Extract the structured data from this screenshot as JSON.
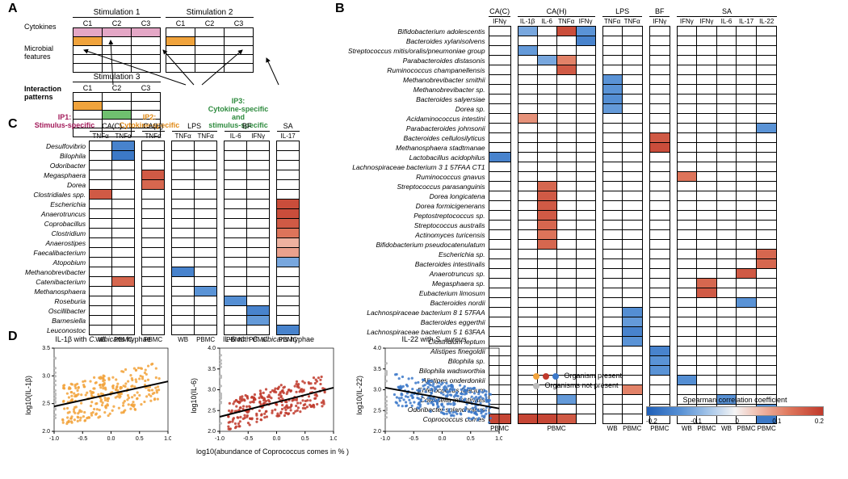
{
  "colormap": {
    "stops": [
      {
        "v": -0.25,
        "c": "#1f5fb8"
      },
      {
        "v": -0.15,
        "c": "#5a93d6"
      },
      {
        "v": -0.07,
        "c": "#a9c8ea"
      },
      {
        "v": 0.0,
        "c": "#f5f5f5"
      },
      {
        "v": 0.07,
        "c": "#f0b9a8"
      },
      {
        "v": 0.15,
        "c": "#e07a5f"
      },
      {
        "v": 0.25,
        "c": "#c0392b"
      }
    ],
    "title": "Spearman correlation coefficient",
    "ticks": [
      "-0.2",
      "-0.1",
      "0",
      "0.1",
      "0.2"
    ]
  },
  "panel_labels": {
    "A": "A",
    "B": "B",
    "C": "C",
    "D": "D"
  },
  "panelA": {
    "cytokines_label": "Cytokines",
    "microbial_label": "Microbial\nfeatures",
    "interaction_label": "Interaction\npatterns",
    "stimulations": [
      {
        "title": "Stimulation 1",
        "cols": [
          "C1",
          "C2",
          "C3"
        ]
      },
      {
        "title": "Stimulation 2",
        "cols": [
          "C1",
          "C2",
          "C3"
        ]
      },
      {
        "title": "Stimulation 3",
        "cols": [
          "C1",
          "C2",
          "C3"
        ]
      }
    ],
    "highlights": {
      "stim1_row0": "#e4a7c6",
      "stim1_row1_c0": "#f0a33c",
      "stim2_row1_c0": "#f0a33c",
      "stim3_row1_c0": "#f0a33c",
      "stim3_row2_c1": "#6fc06f"
    },
    "ip1": "IP1:\nStimulus-specific",
    "ip2": "IP2:\nCytokine-specific",
    "ip3": "IP3:\nCytokine-specific\nand\nstimulus-specific"
  },
  "panelB": {
    "groups": [
      {
        "label": "CA(C)",
        "cols": [
          "IFNγ"
        ],
        "bottom": [
          "PBMC"
        ]
      },
      {
        "label": "CA(H)",
        "cols": [
          "IL-1β",
          "IL-6",
          "TNFα",
          "IFNγ"
        ],
        "bottom": [
          "PBMC"
        ]
      },
      {
        "label": "LPS",
        "cols": [
          "TNFα",
          "TNFα"
        ],
        "bottom": [
          "WB",
          "PBMC"
        ]
      },
      {
        "label": "BF",
        "cols": [
          "IFNγ"
        ],
        "bottom": [
          "PBMC"
        ]
      },
      {
        "label": "SA",
        "cols": [
          "IFNγ",
          "IFNγ",
          "IL-6",
          "IL-17",
          "IL-22"
        ],
        "bottom": [
          "WB",
          "PBMC",
          "WB",
          "PBMC"
        ]
      }
    ],
    "rows": [
      "Bifidobacterium adolescentis",
      "Bacteroides xylanisolvens",
      "Streptococcus mitis/oralis/pneumoniae group",
      "Parabacteroides distasonis",
      "Ruminococcus champanellensis",
      "Methanobrevibacter smithii",
      "Methanobrevibacter sp.",
      "Bacteroides salyersiae",
      "Dorea sp.",
      "Acidaminococcus intestini",
      "Parabacteroides johnsonii",
      "Bacteroides cellulosilyticus",
      "Methanosphaera stadtmanae",
      "Lactobacillus acidophilus",
      "Lachnospiraceae bacterium 3 1 57FAA CT1",
      "Ruminococcus gnavus",
      "Streptococcus parasanguinis",
      "Dorea longicatena",
      "Dorea formicigenerans",
      "Peptostreptococcus sp.",
      "Streptococcus australis",
      "Actinomyces turicensis",
      "Bifidobacterium pseudocatenulatum",
      "Escherichia sp.",
      "Bacteroides intestinalis",
      "Anaerotruncus sp.",
      "Megasphaera sp.",
      "Eubacterium limosum",
      "Bacteroides nordii",
      "Lachnospiraceae bacterium 8 1 57FAA",
      "Bacteroides eggerthii",
      "Lachnospiraceae bacterium 5 1 63FAA",
      "Clostridium leptum",
      "Alistipes finegoldii",
      "Bilophila sp.",
      "Bilophila wadsworthia",
      "Alistipes onderdonkii",
      "Enterococcus faecium",
      "Collinsella intestinalis",
      "Odoribacter splanchnicus",
      "Coprococcus comes"
    ],
    "data": [
      [
        null,
        -0.12,
        null,
        0.22,
        -0.15,
        null,
        null,
        null,
        null,
        null,
        null,
        null,
        null
      ],
      [
        null,
        null,
        null,
        null,
        -0.18,
        null,
        null,
        null,
        null,
        null,
        null,
        null,
        null
      ],
      [
        null,
        -0.14,
        null,
        null,
        null,
        null,
        null,
        null,
        null,
        null,
        null,
        null,
        null
      ],
      [
        null,
        null,
        -0.12,
        0.14,
        null,
        null,
        null,
        null,
        null,
        null,
        null,
        null,
        null
      ],
      [
        null,
        null,
        null,
        0.2,
        null,
        null,
        null,
        null,
        null,
        null,
        null,
        null,
        null
      ],
      [
        null,
        null,
        null,
        null,
        null,
        -0.15,
        null,
        null,
        null,
        null,
        null,
        null,
        null
      ],
      [
        null,
        null,
        null,
        null,
        null,
        -0.15,
        null,
        null,
        null,
        null,
        null,
        null,
        null
      ],
      [
        null,
        null,
        null,
        null,
        null,
        -0.16,
        null,
        null,
        null,
        null,
        null,
        null,
        null
      ],
      [
        null,
        null,
        null,
        null,
        null,
        -0.14,
        null,
        null,
        null,
        null,
        null,
        null,
        null
      ],
      [
        null,
        0.12,
        null,
        null,
        null,
        null,
        null,
        null,
        null,
        null,
        null,
        null,
        null
      ],
      [
        null,
        null,
        null,
        null,
        null,
        null,
        null,
        null,
        null,
        null,
        null,
        null,
        -0.15
      ],
      [
        null,
        null,
        null,
        null,
        null,
        null,
        null,
        0.2,
        null,
        null,
        null,
        null,
        null
      ],
      [
        null,
        null,
        null,
        null,
        null,
        null,
        null,
        0.22,
        null,
        null,
        null,
        null,
        null
      ],
      [
        -0.18,
        null,
        null,
        null,
        null,
        null,
        null,
        null,
        null,
        null,
        null,
        null,
        null
      ],
      [
        null,
        null,
        null,
        null,
        null,
        null,
        null,
        null,
        null,
        null,
        null,
        null,
        null
      ],
      [
        null,
        null,
        null,
        null,
        null,
        null,
        null,
        null,
        0.16,
        null,
        null,
        null,
        null
      ],
      [
        null,
        null,
        0.18,
        null,
        null,
        null,
        null,
        null,
        null,
        null,
        null,
        null,
        null
      ],
      [
        null,
        null,
        0.2,
        null,
        null,
        null,
        null,
        null,
        null,
        null,
        null,
        null,
        null
      ],
      [
        null,
        null,
        0.2,
        null,
        null,
        null,
        null,
        null,
        null,
        null,
        null,
        null,
        null
      ],
      [
        null,
        null,
        0.2,
        null,
        null,
        null,
        null,
        null,
        null,
        null,
        null,
        null,
        null
      ],
      [
        null,
        null,
        0.18,
        null,
        null,
        null,
        null,
        null,
        null,
        null,
        null,
        null,
        null
      ],
      [
        null,
        null,
        0.16,
        null,
        null,
        null,
        null,
        null,
        null,
        null,
        null,
        null,
        null
      ],
      [
        null,
        null,
        0.18,
        null,
        null,
        null,
        null,
        null,
        null,
        null,
        null,
        null,
        null
      ],
      [
        null,
        null,
        null,
        null,
        null,
        null,
        null,
        null,
        null,
        null,
        null,
        null,
        0.18
      ],
      [
        null,
        null,
        null,
        null,
        null,
        null,
        null,
        null,
        null,
        null,
        null,
        null,
        0.18
      ],
      [
        null,
        null,
        null,
        null,
        null,
        null,
        null,
        null,
        null,
        null,
        null,
        0.2,
        null
      ],
      [
        null,
        null,
        null,
        null,
        null,
        null,
        null,
        null,
        null,
        0.18,
        null,
        null,
        null
      ],
      [
        null,
        null,
        null,
        null,
        null,
        null,
        null,
        null,
        null,
        0.2,
        null,
        null,
        null
      ],
      [
        null,
        null,
        null,
        null,
        null,
        null,
        null,
        null,
        null,
        null,
        null,
        -0.15,
        null
      ],
      [
        null,
        null,
        null,
        null,
        null,
        null,
        -0.16,
        null,
        null,
        null,
        null,
        null,
        null
      ],
      [
        null,
        null,
        null,
        null,
        null,
        null,
        -0.14,
        null,
        null,
        null,
        null,
        null,
        null
      ],
      [
        null,
        null,
        null,
        null,
        null,
        null,
        -0.18,
        null,
        null,
        null,
        null,
        null,
        null
      ],
      [
        null,
        null,
        null,
        null,
        null,
        null,
        -0.15,
        null,
        null,
        null,
        null,
        null,
        null
      ],
      [
        null,
        null,
        null,
        null,
        null,
        null,
        null,
        -0.18,
        null,
        null,
        null,
        null,
        null
      ],
      [
        null,
        null,
        null,
        null,
        null,
        null,
        null,
        -0.15,
        null,
        null,
        null,
        null,
        null
      ],
      [
        null,
        null,
        null,
        null,
        null,
        null,
        null,
        -0.15,
        null,
        null,
        null,
        null,
        null
      ],
      [
        null,
        null,
        null,
        null,
        null,
        null,
        null,
        null,
        -0.16,
        null,
        null,
        null,
        null
      ],
      [
        null,
        null,
        null,
        null,
        null,
        null,
        0.14,
        null,
        null,
        null,
        null,
        null,
        null
      ],
      [
        null,
        null,
        null,
        -0.14,
        null,
        null,
        null,
        null,
        null,
        null,
        -0.15,
        null,
        null
      ],
      [
        null,
        null,
        null,
        null,
        null,
        null,
        null,
        null,
        null,
        null,
        null,
        null,
        -0.15
      ],
      [
        0.23,
        0.23,
        0.23,
        0.2,
        null,
        null,
        null,
        null,
        null,
        null,
        null,
        null,
        -0.2
      ]
    ]
  },
  "panelC": {
    "groups": [
      {
        "label": "CA(C)",
        "cols": [
          "TNFα",
          "TNFα"
        ],
        "bottom": [
          "WB",
          "PBMC"
        ]
      },
      {
        "label": "CA(H)",
        "cols": [
          "TNFα"
        ],
        "bottom": [
          "PBMC"
        ]
      },
      {
        "label": "LPS",
        "cols": [
          "TNFα",
          "TNFα"
        ],
        "bottom": [
          "WB",
          "PBMC"
        ]
      },
      {
        "label": "BF",
        "cols": [
          "IL-6",
          "IFNγ"
        ],
        "bottom": [
          "PBMC",
          "PBMC"
        ]
      },
      {
        "label": "SA",
        "cols": [
          "IL-17"
        ],
        "bottom": [
          "PBMC"
        ]
      }
    ],
    "rows": [
      "Desulfovibrio",
      "Bilophila",
      "Odoribacter",
      "Megasphaera",
      "Dorea",
      "Clostridiales spp.",
      "Escherichia",
      "Anaerotruncus",
      "Coprobacillus",
      "Clostridium",
      "Anaerostipes",
      "Faecalibacterium",
      "Atopobium",
      "Methanobrevibacter",
      "Catenibacterium",
      "Methanosphaera",
      "Roseburia",
      "Oscillibacter",
      "Barnesiella",
      "Leuconostoc"
    ],
    "data": [
      [
        null,
        -0.18,
        null,
        null,
        null,
        null,
        null,
        null
      ],
      [
        null,
        -0.2,
        null,
        null,
        null,
        null,
        null,
        null
      ],
      [
        null,
        null,
        null,
        null,
        null,
        null,
        null,
        null
      ],
      [
        null,
        null,
        0.2,
        null,
        null,
        null,
        null,
        null
      ],
      [
        null,
        null,
        0.18,
        null,
        null,
        null,
        null,
        null
      ],
      [
        0.2,
        null,
        null,
        null,
        null,
        null,
        null,
        null
      ],
      [
        null,
        null,
        null,
        null,
        null,
        null,
        null,
        0.22
      ],
      [
        null,
        null,
        null,
        null,
        null,
        null,
        null,
        0.22
      ],
      [
        null,
        null,
        null,
        null,
        null,
        null,
        null,
        0.2
      ],
      [
        null,
        null,
        null,
        null,
        null,
        null,
        null,
        0.16
      ],
      [
        null,
        null,
        null,
        null,
        null,
        null,
        null,
        0.08
      ],
      [
        null,
        null,
        null,
        null,
        null,
        null,
        null,
        0.1
      ],
      [
        null,
        null,
        null,
        null,
        null,
        null,
        null,
        -0.12
      ],
      [
        null,
        null,
        null,
        -0.18,
        null,
        null,
        null,
        null
      ],
      [
        null,
        0.18,
        null,
        null,
        null,
        null,
        null,
        null
      ],
      [
        null,
        null,
        null,
        null,
        -0.15,
        null,
        null,
        null
      ],
      [
        null,
        null,
        null,
        null,
        null,
        -0.16,
        null,
        null
      ],
      [
        null,
        null,
        null,
        null,
        null,
        null,
        -0.18,
        null
      ],
      [
        null,
        null,
        null,
        null,
        null,
        null,
        -0.14,
        null
      ],
      [
        null,
        null,
        null,
        null,
        null,
        null,
        null,
        -0.18
      ]
    ]
  },
  "panelD": {
    "xlabel": "log10(abundance of Coprococcus comes in % )",
    "legend": {
      "present": "Organism present",
      "absent": "Organisms not present",
      "absent_color": "#bcbcbc"
    },
    "plots": [
      {
        "title": "IL-1β with C. albicans hyphae",
        "ylabel": "log10(IL-1β)",
        "color": "#f2a33c",
        "n": 280,
        "seed": 11,
        "xlim": [
          -1.0,
          1.0
        ],
        "ylim": [
          2.0,
          3.5
        ],
        "xticks": [
          "-1.0",
          "-0.5",
          "0.0",
          "0.5",
          "1.0"
        ],
        "yticks": [
          "2.0",
          "2.5",
          "3.0",
          "3.5"
        ],
        "line": {
          "x0": -1.0,
          "y0": 2.45,
          "x1": 1.0,
          "y1": 2.9
        }
      },
      {
        "title": "IL-6 with C. albicans hyphae",
        "ylabel": "log10(IL-6)",
        "color": "#c0392b",
        "n": 280,
        "seed": 22,
        "xlim": [
          -1.0,
          1.0
        ],
        "ylim": [
          2.0,
          4.0
        ],
        "xticks": [
          "-1.0",
          "-0.5",
          "0.0",
          "0.5",
          "1.0"
        ],
        "yticks": [
          "2.0",
          "2.5",
          "3.0",
          "3.5",
          "4.0"
        ],
        "line": {
          "x0": -1.0,
          "y0": 2.35,
          "x1": 1.0,
          "y1": 3.05
        }
      },
      {
        "title": "IL-22 with S. aureus",
        "ylabel": "log10(IL-22)",
        "color": "#3b78c9",
        "n": 280,
        "seed": 33,
        "xlim": [
          -1.0,
          1.0
        ],
        "ylim": [
          2.0,
          4.0
        ],
        "xticks": [
          "-1.0",
          "-0.5",
          "0.0",
          "0.5",
          "1.0"
        ],
        "yticks": [
          "2.0",
          "2.5",
          "3.0",
          "3.5",
          "4.0"
        ],
        "line": {
          "x0": -1.0,
          "y0": 3.05,
          "x1": 1.0,
          "y1": 2.55
        }
      }
    ]
  }
}
